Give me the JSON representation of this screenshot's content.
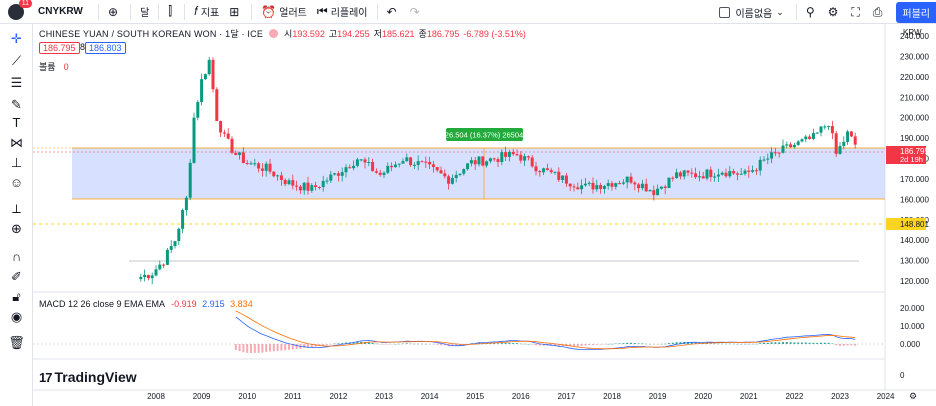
{
  "topbar": {
    "symbol": "CNYKRW",
    "avatar_badge": "11",
    "interval": "달",
    "indicators": "지표",
    "alert": "얼러트",
    "replay": "리플레이",
    "no_name": "이름없음",
    "publish": "퍼블리"
  },
  "legend": {
    "title": "CHINESE YUAN / SOUTH KOREAN WON · 1달 · ICE",
    "open_label": "시",
    "open": "193.592",
    "high_label": "고",
    "high": "194.255",
    "low_label": "저",
    "low": "185.621",
    "close_label": "종",
    "close": "186.795",
    "change": "-6.789 (-3.51%)",
    "bid": "186.795",
    "spread": "8",
    "ask": "186.803"
  },
  "volume": {
    "label": "볼륨",
    "value": "0"
  },
  "macd": {
    "label": "MACD 12 26 close 9 EMA EMA",
    "hist": "-0.919",
    "macd": "2.915",
    "signal": "3.834"
  },
  "logo": {
    "text": "TradingView",
    "mark": "17"
  },
  "price_axis": {
    "currency": "KRW",
    "ticks": [
      "240.000",
      "230.000",
      "220.000",
      "210.000",
      "200.000",
      "190.000",
      "180.000",
      "170.000",
      "160.000",
      "150.000",
      "140.000",
      "130.000",
      "120.000"
    ],
    "current": "186.795",
    "countdown": "2d 19h",
    "hline_label": "148.801"
  },
  "macd_axis": {
    "ticks": [
      "20.000",
      "10.000",
      "0.000"
    ]
  },
  "time_axis": {
    "ticks": [
      "2008",
      "2009",
      "2010",
      "2011",
      "2012",
      "2013",
      "2014",
      "2015",
      "2016",
      "2017",
      "2018",
      "2019",
      "2020",
      "2021",
      "2022",
      "2023",
      "2024"
    ]
  },
  "extra_axis": {
    "label": "0"
  },
  "measure": {
    "label": "26.504 (16.37%) 26504"
  },
  "colors": {
    "up": "#089981",
    "down": "#f23645",
    "range_fill": "#c9d6ff",
    "macd": "#2962ff",
    "signal": "#ff6d00"
  },
  "chart_data": {
    "type": "candlestick",
    "interval": "1M",
    "ylim": [
      115,
      245
    ],
    "closes": [
      [
        "2007-09",
        122
      ],
      [
        "2007-12",
        124
      ],
      [
        "2008-03",
        130
      ],
      [
        "2008-06",
        140
      ],
      [
        "2008-09",
        160
      ],
      [
        "2008-11",
        200
      ],
      [
        "2009-01",
        218
      ],
      [
        "2009-03",
        228
      ],
      [
        "2009-05",
        200
      ],
      [
        "2009-07",
        190
      ],
      [
        "2009-10",
        182
      ],
      [
        "2010-01",
        178
      ],
      [
        "2010-06",
        175
      ],
      [
        "2010-12",
        168
      ],
      [
        "2011-06",
        165
      ],
      [
        "2011-12",
        172
      ],
      [
        "2012-06",
        180
      ],
      [
        "2012-12",
        172
      ],
      [
        "2013-06",
        180
      ],
      [
        "2013-12",
        176
      ],
      [
        "2014-06",
        170
      ],
      [
        "2014-12",
        178
      ],
      [
        "2015-06",
        180
      ],
      [
        "2015-12",
        182
      ],
      [
        "2016-06",
        175
      ],
      [
        "2016-12",
        170
      ],
      [
        "2017-06",
        166
      ],
      [
        "2017-12",
        168
      ],
      [
        "2018-06",
        170
      ],
      [
        "2018-12",
        164
      ],
      [
        "2019-06",
        172
      ],
      [
        "2019-12",
        172
      ],
      [
        "2020-06",
        174
      ],
      [
        "2020-12",
        172
      ],
      [
        "2021-06",
        180
      ],
      [
        "2021-12",
        186
      ],
      [
        "2022-06",
        190
      ],
      [
        "2022-10",
        198
      ],
      [
        "2022-12",
        182
      ],
      [
        "2023-03",
        192
      ],
      [
        "2023-05",
        186.795
      ]
    ]
  }
}
